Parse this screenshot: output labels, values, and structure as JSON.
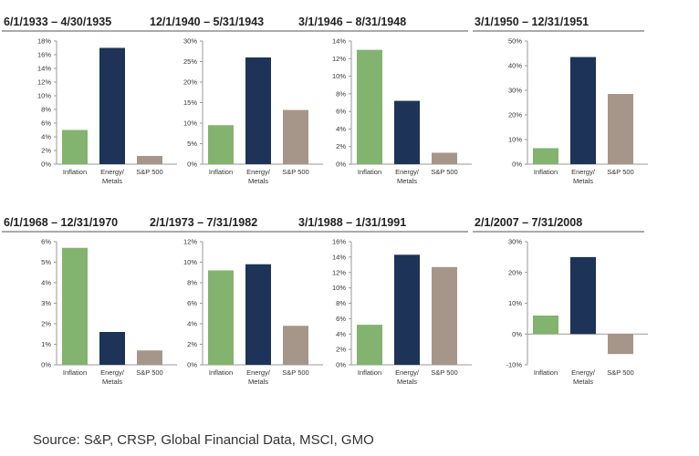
{
  "colors": {
    "inflation": "#82b36f",
    "energy": "#1d3357",
    "sp500": "#a6968a",
    "axis": "#9a9a9a",
    "title_rule": "#555555"
  },
  "chart_data": [
    {
      "type": "bar",
      "title": "6/1/1933 – 4/30/1935",
      "categories": [
        [
          "Inflation"
        ],
        [
          "Energy/",
          "Metals"
        ],
        [
          "S&P 500"
        ]
      ],
      "values": [
        5.0,
        17.0,
        1.2
      ],
      "yticks": [
        0,
        2,
        4,
        6,
        8,
        10,
        12,
        14,
        16,
        18
      ],
      "tick_labels": [
        "0%",
        "2%",
        "4%",
        "6%",
        "8%",
        "10%",
        "12%",
        "14%",
        "16%",
        "18%"
      ],
      "ylim": [
        0,
        18
      ]
    },
    {
      "type": "bar",
      "title": "12/1/1940 – 5/31/1943",
      "categories": [
        [
          "Inflation"
        ],
        [
          "Energy/",
          "Metals"
        ],
        [
          "S&P 500"
        ]
      ],
      "values": [
        9.5,
        26.0,
        13.2
      ],
      "yticks": [
        0,
        5,
        10,
        15,
        20,
        25,
        30
      ],
      "tick_labels": [
        "0%",
        "5%",
        "10%",
        "15%",
        "20%",
        "25%",
        "30%"
      ],
      "ylim": [
        0,
        30
      ]
    },
    {
      "type": "bar",
      "title": "3/1/1946 – 8/31/1948",
      "categories": [
        [
          "Inflation"
        ],
        [
          "Energy/",
          "Metals"
        ],
        [
          "S&P 500"
        ]
      ],
      "values": [
        13.0,
        7.2,
        1.3
      ],
      "yticks": [
        0,
        2,
        4,
        6,
        8,
        10,
        12,
        14
      ],
      "tick_labels": [
        "0%",
        "2%",
        "4%",
        "6%",
        "8%",
        "10%",
        "12%",
        "14%"
      ],
      "ylim": [
        0,
        14
      ]
    },
    {
      "type": "bar",
      "title": "3/1/1950 – 12/31/1951",
      "categories": [
        [
          "Inflation"
        ],
        [
          "Energy/",
          "Metals"
        ],
        [
          "S&P 500"
        ]
      ],
      "values": [
        6.5,
        43.5,
        28.5
      ],
      "yticks": [
        0,
        10,
        20,
        30,
        40,
        50
      ],
      "tick_labels": [
        "0%",
        "10%",
        "20%",
        "30%",
        "40%",
        "50%"
      ],
      "ylim": [
        0,
        50
      ]
    },
    {
      "type": "bar",
      "title": "6/1/1968 – 12/31/1970",
      "categories": [
        [
          "Inflation"
        ],
        [
          "Energy/",
          "Metals"
        ],
        [
          "S&P 500"
        ]
      ],
      "values": [
        5.7,
        1.6,
        0.7
      ],
      "yticks": [
        0,
        1,
        2,
        3,
        4,
        5,
        6
      ],
      "tick_labels": [
        "0%",
        "1%",
        "2%",
        "3%",
        "4%",
        "5%",
        "6%"
      ],
      "ylim": [
        0,
        6
      ]
    },
    {
      "type": "bar",
      "title": "2/1/1973 – 7/31/1982",
      "categories": [
        [
          "Inflation"
        ],
        [
          "Energy/",
          "Metals"
        ],
        [
          "S&P 500"
        ]
      ],
      "values": [
        9.2,
        9.8,
        3.8
      ],
      "yticks": [
        0,
        2,
        4,
        6,
        8,
        10,
        12
      ],
      "tick_labels": [
        "0%",
        "2%",
        "4%",
        "6%",
        "8%",
        "10%",
        "12%"
      ],
      "ylim": [
        0,
        12
      ]
    },
    {
      "type": "bar",
      "title": "3/1/1988 – 1/31/1991",
      "categories": [
        [
          "Inflation"
        ],
        [
          "Energy/",
          "Metals"
        ],
        [
          "S&P 500"
        ]
      ],
      "values": [
        5.2,
        14.3,
        12.7
      ],
      "yticks": [
        0,
        2,
        4,
        6,
        8,
        10,
        12,
        14,
        16
      ],
      "tick_labels": [
        "0%",
        "2%",
        "4%",
        "6%",
        "8%",
        "10%",
        "12%",
        "14%",
        "16%"
      ],
      "ylim": [
        0,
        16
      ]
    },
    {
      "type": "bar",
      "title": "2/1/2007 – 7/31/2008",
      "categories": [
        [
          "Inflation"
        ],
        [
          "Energy/",
          "Metals"
        ],
        [
          "S&P 500"
        ]
      ],
      "values": [
        6.0,
        25.0,
        -6.5
      ],
      "yticks": [
        -10,
        0,
        10,
        20,
        30
      ],
      "tick_labels": [
        "-10%",
        "0%",
        "10%",
        "20%",
        "30%"
      ],
      "ylim": [
        -10,
        30
      ]
    }
  ],
  "source": "Source: S&P, CRSP, Global Financial Data, MSCI, GMO"
}
